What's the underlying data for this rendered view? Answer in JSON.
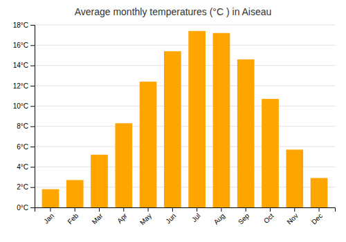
{
  "chart_data": {
    "type": "bar",
    "title": "Average monthly temperatures (°C ) in Aiseau",
    "categories": [
      "Jan",
      "Feb",
      "Mar",
      "Apr",
      "May",
      "Jun",
      "Jul",
      "Aug",
      "Sep",
      "Oct",
      "Nov",
      "Dec"
    ],
    "values": [
      1.8,
      2.7,
      5.2,
      8.3,
      12.4,
      15.4,
      17.4,
      17.2,
      14.6,
      10.7,
      5.7,
      2.9
    ],
    "color": "#FFA500",
    "ylim": [
      0,
      18
    ],
    "yticks": [
      {
        "value": 0,
        "label": "0°C"
      },
      {
        "value": 2,
        "label": "2°C"
      },
      {
        "value": 4,
        "label": "4°C"
      },
      {
        "value": 6,
        "label": "6°C"
      },
      {
        "value": 8,
        "label": "8°C"
      },
      {
        "value": 10,
        "label": "10°C"
      },
      {
        "value": 12,
        "label": "12°C"
      },
      {
        "value": 14,
        "label": "14°C"
      },
      {
        "value": 16,
        "label": "16°C"
      },
      {
        "value": 18,
        "label": "18°C"
      }
    ],
    "grid": true
  }
}
